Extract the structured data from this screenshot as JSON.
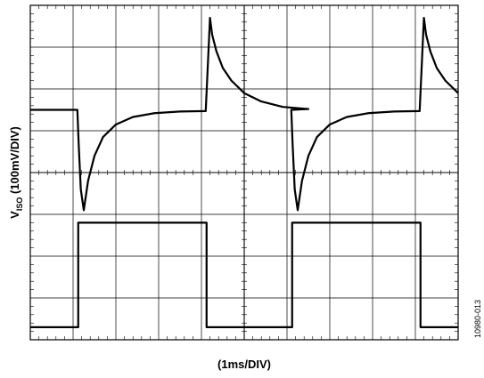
{
  "chart_data": {
    "type": "line",
    "title": "",
    "xlabel": "(1ms/DIV)",
    "ylabel_main": "V",
    "ylabel_sub": "ISO",
    "ylabel_rest": " (100mV/DIV)",
    "figure_id": "10980-013",
    "grid": true,
    "xlim": [
      0,
      10
    ],
    "ylim": [
      -4,
      4
    ],
    "x_divisions": 10,
    "y_divisions": 8,
    "series": [
      {
        "id": "viso",
        "color": "#000000",
        "x": [
          0,
          1.1,
          1.13,
          1.18,
          1.25,
          1.35,
          1.5,
          1.7,
          2.0,
          2.4,
          2.9,
          3.5,
          4.1,
          4.2,
          4.25,
          4.35,
          4.5,
          4.7,
          5.0,
          5.4,
          5.9,
          6.5,
          6.1,
          6.13,
          6.18,
          6.25,
          6.35,
          6.5,
          6.7,
          7.0,
          7.4,
          7.9,
          8.5,
          9.1,
          9.2,
          9.25,
          9.35,
          9.5,
          9.7,
          10.0
        ],
        "y": [
          1.5,
          1.5,
          0.7,
          -0.4,
          -0.9,
          -0.2,
          0.4,
          0.85,
          1.15,
          1.33,
          1.42,
          1.46,
          1.47,
          3.7,
          3.3,
          2.9,
          2.5,
          2.2,
          1.9,
          1.7,
          1.57,
          1.52,
          1.5,
          0.7,
          -0.4,
          -0.9,
          -0.2,
          0.4,
          0.85,
          1.15,
          1.33,
          1.42,
          1.46,
          1.47,
          3.7,
          3.3,
          2.9,
          2.5,
          2.2,
          1.9
        ]
      },
      {
        "id": "logic",
        "color": "#000000",
        "x": [
          0,
          1.12,
          1.12,
          4.12,
          4.12,
          6.12,
          6.12,
          9.12,
          9.12,
          10.0
        ],
        "y": [
          -3.7,
          -3.7,
          -1.2,
          -1.2,
          -3.7,
          -3.7,
          -1.2,
          -1.2,
          -3.7,
          -3.7
        ]
      }
    ]
  }
}
